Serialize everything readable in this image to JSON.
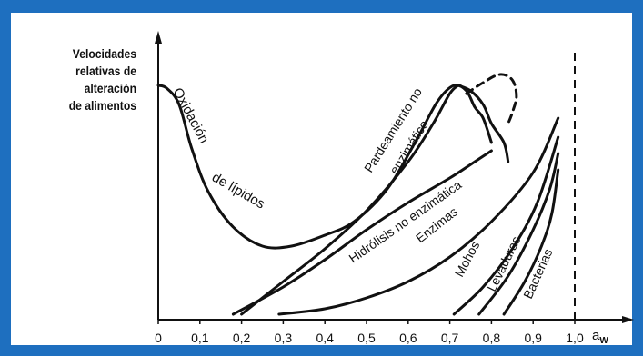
{
  "chart_data": {
    "type": "line",
    "title": "",
    "ylabel_lines": [
      "Velocidades",
      "relativas de",
      "alteración",
      "de alimentos"
    ],
    "xlabel": "a",
    "xlabel_sub": "W",
    "xlim": [
      0,
      1.0
    ],
    "ylim": [
      0,
      1
    ],
    "x_ticks": [
      "0",
      "0,1",
      "0,2",
      "0,3",
      "0,4",
      "0,5",
      "0,6",
      "0,7",
      "0,8",
      "0,9",
      "1,0"
    ],
    "grid": false,
    "legend": "none",
    "reference_line": {
      "x": 1.0,
      "style": "dashed"
    },
    "series": [
      {
        "name": "Oxidación de lípidos",
        "x": [
          0,
          0.02,
          0.05,
          0.08,
          0.12,
          0.18,
          0.25,
          0.32,
          0.4,
          0.47,
          0.55,
          0.62,
          0.67,
          0.71,
          0.74,
          0.76,
          0.78,
          0.8
        ],
        "y": [
          0.86,
          0.85,
          0.79,
          0.63,
          0.47,
          0.34,
          0.27,
          0.27,
          0.31,
          0.36,
          0.48,
          0.66,
          0.8,
          0.86,
          0.84,
          0.78,
          0.74,
          0.65
        ]
      },
      {
        "name": "Pardeamiento no enzimático",
        "x": [
          0.2,
          0.3,
          0.4,
          0.5,
          0.6,
          0.66,
          0.7,
          0.72
        ],
        "y": [
          0.02,
          0.14,
          0.26,
          0.4,
          0.58,
          0.72,
          0.83,
          0.86
        ]
      },
      {
        "name": "Pardeamiento no enzimático (descenso)",
        "x": [
          0.72,
          0.75,
          0.78,
          0.8,
          0.83,
          0.84
        ],
        "y": [
          0.86,
          0.84,
          0.79,
          0.72,
          0.65,
          0.58
        ]
      },
      {
        "name": "Pardeamiento no enzimático (rama discontinua)",
        "x": [
          0.74,
          0.78,
          0.82,
          0.85,
          0.86,
          0.85,
          0.84
        ],
        "y": [
          0.83,
          0.87,
          0.9,
          0.88,
          0.82,
          0.76,
          0.72
        ]
      },
      {
        "name": "Hidrólisis no enzimática",
        "x": [
          0.18,
          0.3,
          0.4,
          0.5,
          0.6,
          0.7,
          0.77,
          0.8
        ],
        "y": [
          0.02,
          0.12,
          0.22,
          0.33,
          0.43,
          0.52,
          0.59,
          0.62
        ]
      },
      {
        "name": "Enzimas",
        "x": [
          0.29,
          0.4,
          0.5,
          0.6,
          0.7,
          0.8,
          0.9,
          0.96
        ],
        "y": [
          0.02,
          0.04,
          0.08,
          0.14,
          0.23,
          0.36,
          0.54,
          0.74
        ]
      },
      {
        "name": "Mohos",
        "x": [
          0.71,
          0.78,
          0.85,
          0.91,
          0.96
        ],
        "y": [
          0.02,
          0.12,
          0.26,
          0.43,
          0.67
        ]
      },
      {
        "name": "Levaduras",
        "x": [
          0.77,
          0.84,
          0.9,
          0.94,
          0.96
        ],
        "y": [
          0.02,
          0.16,
          0.33,
          0.48,
          0.61
        ]
      },
      {
        "name": "Bacterias",
        "x": [
          0.83,
          0.88,
          0.92,
          0.945,
          0.96
        ],
        "y": [
          0.02,
          0.14,
          0.27,
          0.39,
          0.55
        ]
      }
    ],
    "annotations": [
      {
        "text": "Oxidación",
        "id": "ann-oxidacion"
      },
      {
        "text": "de lípidos",
        "id": "ann-lipidos"
      },
      {
        "text": "Pardeamiento no",
        "id": "ann-pardeamiento-1"
      },
      {
        "text": "enzimático",
        "id": "ann-pardeamiento-2"
      },
      {
        "text": "Hidrólisis no enzimática",
        "id": "ann-hidrolisis"
      },
      {
        "text": "Enzimas",
        "id": "ann-enzimas"
      },
      {
        "text": "Mohos",
        "id": "ann-mohos"
      },
      {
        "text": "Levaduras",
        "id": "ann-levaduras"
      },
      {
        "text": "Bacterias",
        "id": "ann-bacterias"
      }
    ],
    "colors": {
      "frame": "#1e6fbf",
      "ink": "#111111"
    }
  }
}
